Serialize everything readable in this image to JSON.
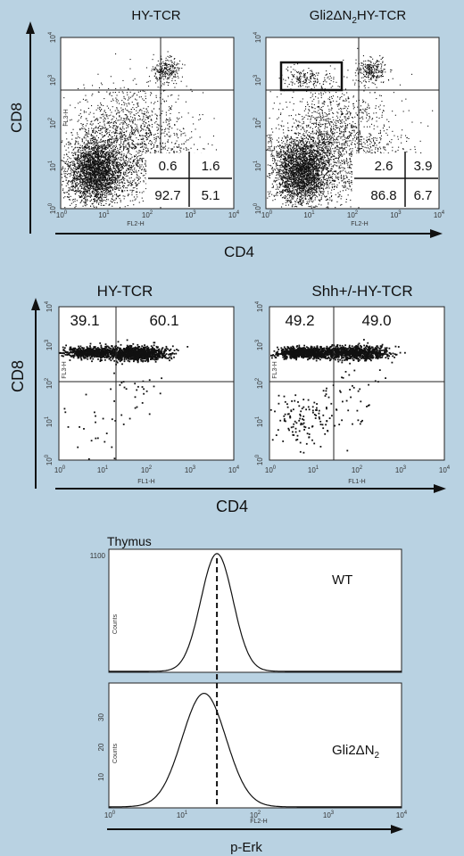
{
  "figure": {
    "background": "#b9d2e2",
    "plot_background": "#ffffff",
    "dot_color": "#111111"
  },
  "chart_data": [
    {
      "type": "scatter",
      "panel": "A",
      "title": "HY-TCR",
      "xlabel": "CD4",
      "ylabel": "CD8",
      "axis_xlabel": "FL2-H",
      "axis_ylabel": "FL3-H",
      "scale": "log",
      "xlim": [
        1,
        10000
      ],
      "ylim": [
        1,
        10000
      ],
      "gates": {
        "x": 70,
        "y": 600
      },
      "quadrants": {
        "CD8": "0.6",
        "DP": "1.6",
        "DN": "92.7",
        "CD4": "5.1"
      },
      "gate_box": null
    },
    {
      "type": "scatter",
      "panel": "A",
      "title": "Gli2ΔN",
      "title_sub": "2",
      "title_tail": "HY-TCR",
      "xlabel": "CD4",
      "ylabel": "CD8",
      "axis_xlabel": "FL2-H",
      "axis_ylabel": "FL3-H",
      "scale": "log",
      "xlim": [
        1,
        10000
      ],
      "ylim": [
        1,
        10000
      ],
      "gates": {
        "x": 70,
        "y": 600
      },
      "quadrants": {
        "CD8": "2.6",
        "DP": "3.9",
        "DN": "86.8",
        "CD4": "6.7"
      },
      "gate_box": {
        "x": [
          2,
          45
        ],
        "y": [
          600,
          2300
        ]
      }
    },
    {
      "type": "scatter",
      "panel": "B",
      "title": "HY-TCR",
      "xlabel": "CD4",
      "ylabel": "CD8",
      "axis_xlabel": "FL1-H",
      "axis_ylabel": "FL3-H",
      "scale": "log",
      "xlim": [
        1,
        10000
      ],
      "ylim": [
        1,
        10000
      ],
      "gates": {
        "x": 28,
        "y": 140
      },
      "quadrants": {
        "CD8": "39.1",
        "DP": "60.1"
      }
    },
    {
      "type": "scatter",
      "panel": "B",
      "title": "Shh+/-HY-TCR",
      "xlabel": "CD4",
      "ylabel": "CD8",
      "axis_xlabel": "FL1-H",
      "axis_ylabel": "FL3-H",
      "scale": "log",
      "xlim": [
        1,
        10000
      ],
      "ylim": [
        1,
        10000
      ],
      "gates": {
        "x": 28,
        "y": 140
      },
      "quadrants": {
        "CD8": "49.2",
        "DP": "49.0"
      }
    },
    {
      "type": "line",
      "panel": "C",
      "title": "Thymus",
      "label": "WT",
      "xlabel": "p-Erk",
      "axis_xlabel": "FL2-H",
      "ylabel": "Counts",
      "scale": "log",
      "xlim": [
        1,
        10000
      ],
      "ylim": [
        0,
        1100
      ],
      "ytick": "1100",
      "peak_x": 30,
      "peak_y": 1100,
      "log_width": 0.22
    },
    {
      "type": "line",
      "panel": "C",
      "label": "Gli2ΔN",
      "label_sub": "2",
      "xlabel": "p-Erk",
      "axis_xlabel": "FL2-H",
      "ylabel": "Counts",
      "scale": "log",
      "xlim": [
        1,
        10000
      ],
      "ylim": [
        0,
        40
      ],
      "yticks": [
        "30",
        "20",
        "10"
      ],
      "peak_x": 20,
      "peak_y": 38,
      "log_width": 0.3,
      "reference_line_x": 30
    }
  ],
  "tick_labels": {
    "x": [
      {
        "m": "10",
        "e": "0"
      },
      {
        "m": "10",
        "e": "1"
      },
      {
        "m": "10",
        "e": "2"
      },
      {
        "m": "10",
        "e": "3"
      },
      {
        "m": "10",
        "e": "4"
      }
    ],
    "y": [
      {
        "m": "10",
        "e": "0"
      },
      {
        "m": "10",
        "e": "1"
      },
      {
        "m": "10",
        "e": "2"
      },
      {
        "m": "10",
        "e": "3"
      },
      {
        "m": "10",
        "e": "4"
      }
    ]
  }
}
